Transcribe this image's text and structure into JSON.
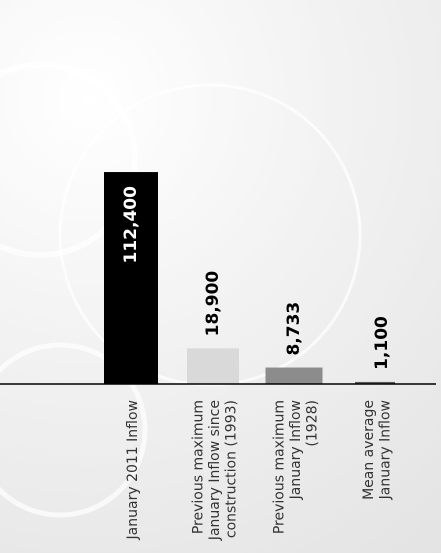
{
  "chart_data": {
    "type": "bar",
    "title": "",
    "xlabel": "",
    "ylabel": "",
    "ylim": [
      0,
      125000
    ],
    "grid": false,
    "legend": "none",
    "value_labels_rotated": true,
    "categories": [
      [
        "January 2011 Inflow"
      ],
      [
        "Previous maximum",
        "January Inflow since",
        "construction (1993)"
      ],
      [
        "Previous maximum",
        "January Inflow",
        "(1928)"
      ],
      [
        "Mean average",
        "January Inflow"
      ]
    ],
    "values": [
      112400,
      18900,
      8733,
      1100
    ],
    "value_labels": [
      "112,400",
      "18,900",
      "8,733",
      "1,100"
    ],
    "colors": [
      "#000000",
      "#d9d9d9",
      "#8c8c8c",
      "#595959"
    ],
    "axis_color": "#000000"
  }
}
